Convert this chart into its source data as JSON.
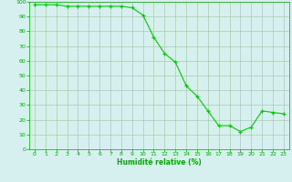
{
  "x": [
    0,
    1,
    2,
    3,
    4,
    5,
    6,
    7,
    8,
    9,
    10,
    11,
    12,
    13,
    14,
    15,
    16,
    17,
    18,
    19,
    20,
    21,
    22,
    23
  ],
  "y": [
    98,
    98,
    98,
    97,
    97,
    97,
    97,
    97,
    97,
    96,
    91,
    76,
    65,
    59,
    43,
    36,
    26,
    16,
    16,
    12,
    15,
    26,
    25,
    24
  ],
  "line_color": "#00cc00",
  "marker": "+",
  "marker_color": "#00cc00",
  "bg_color": "#d5f0ee",
  "grid_color": "#aaccaa",
  "xlabel": "Humidité relative (%)",
  "xlabel_color": "#00aa00",
  "tick_color": "#00aa00",
  "ylim": [
    0,
    100
  ],
  "xlim_min": -0.5,
  "xlim_max": 23.5,
  "yticks": [
    0,
    10,
    20,
    30,
    40,
    50,
    60,
    70,
    80,
    90,
    100
  ],
  "xticks": [
    0,
    1,
    2,
    3,
    4,
    5,
    6,
    7,
    8,
    9,
    10,
    11,
    12,
    13,
    14,
    15,
    16,
    17,
    18,
    19,
    20,
    21,
    22,
    23
  ]
}
